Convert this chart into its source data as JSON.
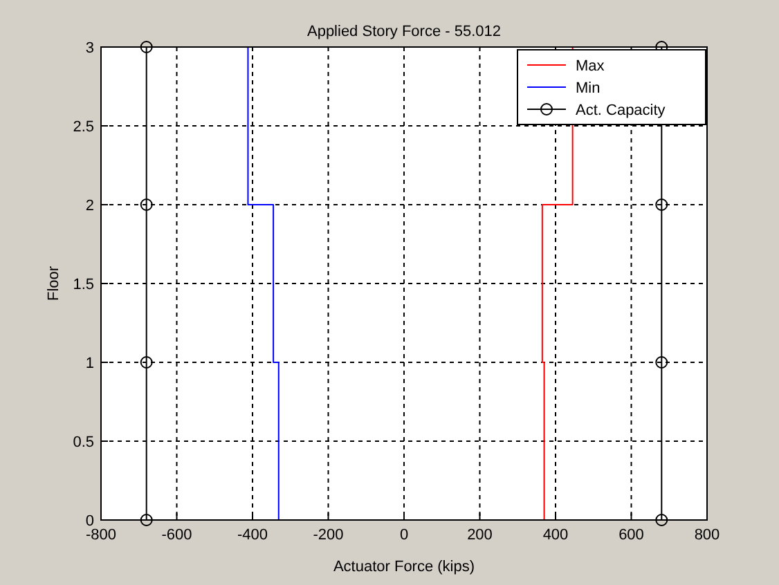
{
  "chart_data": {
    "type": "line",
    "title": "Applied Story Force - 55.012",
    "xlabel": "Actuator Force (kips)",
    "ylabel": "Floor",
    "xlim": [
      -800,
      800
    ],
    "xticks": [
      -800,
      -600,
      -400,
      -200,
      0,
      200,
      400,
      600,
      800
    ],
    "ylim": [
      0,
      3
    ],
    "yticks": [
      0,
      0.5,
      1,
      1.5,
      2,
      2.5,
      3
    ],
    "grid": true,
    "legend": "top right",
    "line_style": "solid",
    "series": [
      {
        "name": "Max",
        "color": "#ff0000",
        "x": [
          370,
          370,
          365,
          365,
          445,
          445
        ],
        "values": [
          0,
          1,
          1,
          2,
          2,
          3
        ],
        "marker": "none"
      },
      {
        "name": "Min",
        "color": "#0000ff",
        "x": [
          -331,
          -331,
          -345,
          -345,
          -412,
          -412
        ],
        "values": [
          0,
          1,
          1,
          2,
          2,
          3
        ],
        "marker": "none"
      },
      {
        "name": "Act. Capacity",
        "color": "#000000",
        "x": [
          -680,
          -680,
          -680,
          -680
        ],
        "values": [
          0,
          1,
          2,
          3
        ],
        "marker": "circle"
      },
      {
        "color": "#000000",
        "x": [
          680,
          680,
          680,
          680
        ],
        "values": [
          0,
          1,
          2,
          3
        ],
        "marker": "circle"
      }
    ]
  }
}
